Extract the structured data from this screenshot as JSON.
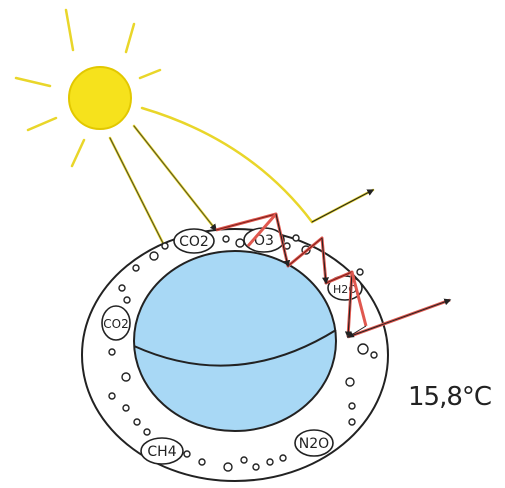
{
  "temperature": "15,8°C",
  "molecules": {
    "co2_top": "CO2",
    "o3": "O3",
    "h2o": "H2O",
    "co2_left": "CO2",
    "ch4": "CH4",
    "n2o": "N2O"
  },
  "colors": {
    "sun": "#f6e21c",
    "sun_stroke": "#e2c800",
    "ray": "#e9d62a",
    "arrow": "#4a4a2a",
    "reflected": "#e0584f",
    "earth": "#a8d8f5",
    "outline": "#222222"
  }
}
